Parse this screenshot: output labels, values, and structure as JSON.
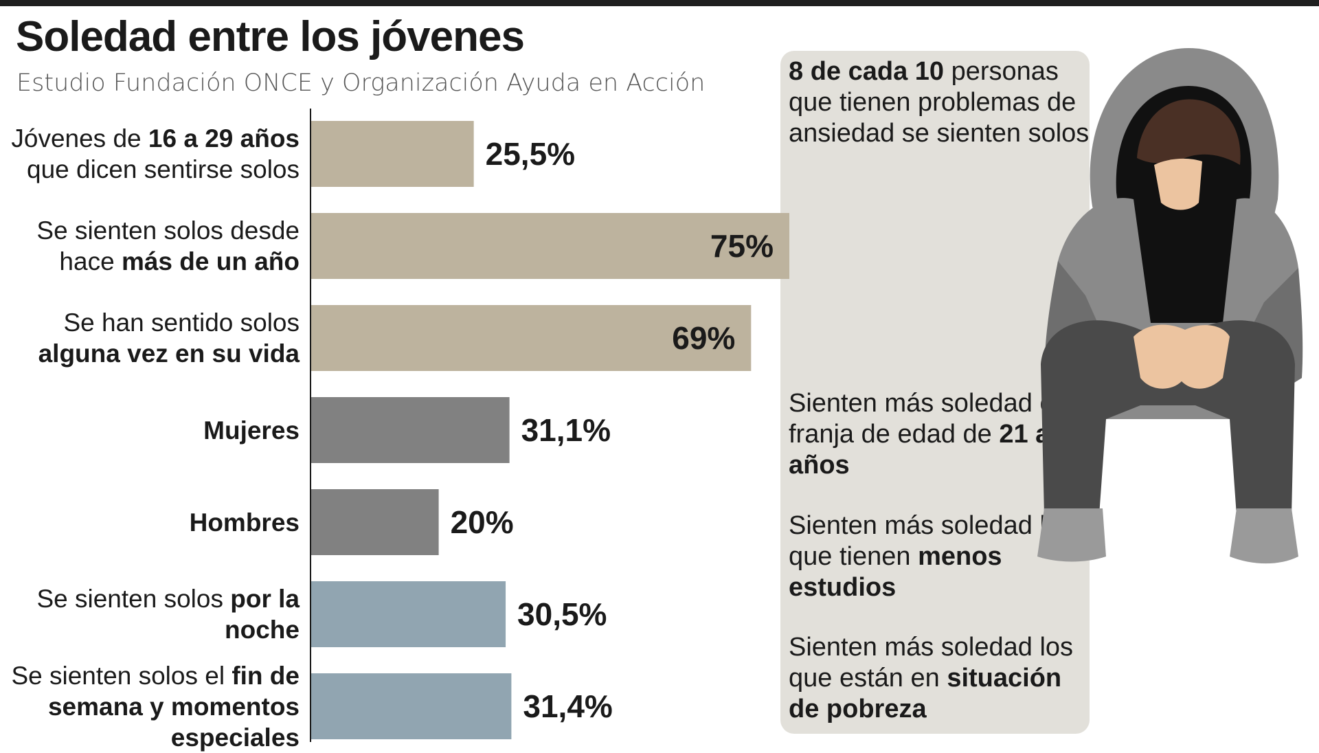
{
  "chart_data": {
    "type": "bar",
    "orientation": "horizontal",
    "title": "Soledad entre los jóvenes",
    "subtitle": "Estudio Fundación ONCE y Organización Ayuda en Acción",
    "xlim": [
      0,
      100
    ],
    "grid": false,
    "unit": "%",
    "categories": [
      [
        {
          "t": "Jóvenes de ",
          "b": false
        },
        {
          "t": "16 a 29 años",
          "b": true
        },
        {
          "t": " que dicen sentirse solos",
          "b": false
        }
      ],
      [
        {
          "t": "Se sienten solos desde hace ",
          "b": false
        },
        {
          "t": "más de un año",
          "b": true
        }
      ],
      [
        {
          "t": "Se han sentido solos ",
          "b": false
        },
        {
          "t": "alguna vez en su vida",
          "b": true
        }
      ],
      [
        {
          "t": "Mujeres",
          "b": true
        }
      ],
      [
        {
          "t": "Hombres",
          "b": true
        }
      ],
      [
        {
          "t": "Se sienten solos ",
          "b": false
        },
        {
          "t": "por la noche",
          "b": true
        }
      ],
      [
        {
          "t": "Se sienten solos el ",
          "b": false
        },
        {
          "t": "fin de semana y momentos especiales",
          "b": true
        }
      ]
    ],
    "values": [
      25.5,
      75,
      69,
      31.1,
      20,
      30.5,
      31.4
    ],
    "value_labels": [
      "25,5%",
      "75%",
      "69%",
      "31,1%",
      "20%",
      "30,5%",
      "31,4%"
    ],
    "bar_colors": [
      "#bdb39e",
      "#bdb39e",
      "#bdb39e",
      "#818181",
      "#818181",
      "#91a5b1",
      "#91a5b1"
    ],
    "label_inside": [
      false,
      true,
      true,
      false,
      false,
      false,
      false
    ]
  },
  "side_panel": [
    [
      {
        "t": "8 de cada 10",
        "b": true
      },
      {
        "t": " personas que tienen problemas de ansiedad se sienten solos",
        "b": false
      }
    ],
    [
      {
        "t": "Sienten más soledad en la franja de edad de ",
        "b": false
      },
      {
        "t": "21 a 26 años",
        "b": true
      }
    ],
    [
      {
        "t": "Sienten más soledad los que tienen ",
        "b": false
      },
      {
        "t": "menos estudios",
        "b": true
      }
    ],
    [
      {
        "t": "Sienten más soledad los que están en ",
        "b": false
      },
      {
        "t": "situación de pobreza",
        "b": true
      }
    ]
  ],
  "illustration": {
    "icon": "hooded-person-sitting-icon",
    "colors": {
      "hoodie": "#8a8a8a",
      "hoodie_dark": "#6e6e6e",
      "pants": "#4a4a4a",
      "skin": "#ecc4a0",
      "hair": "#4a3025",
      "shoes": "#9a9a9a",
      "inner": "#111111"
    }
  }
}
